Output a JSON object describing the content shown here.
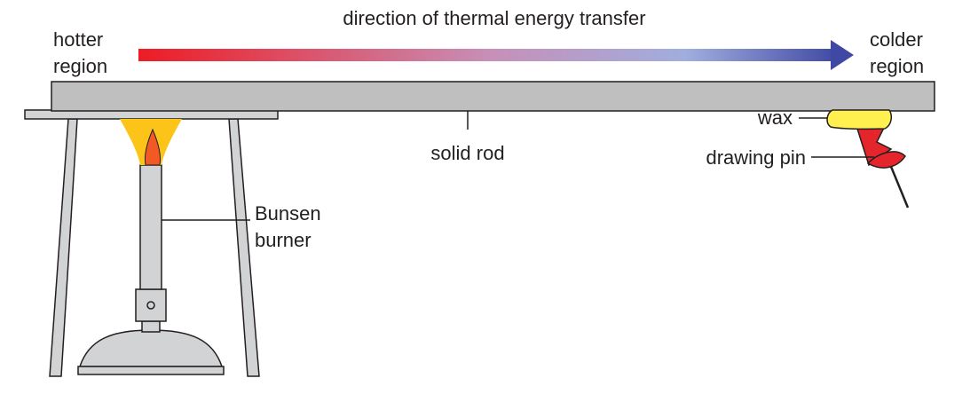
{
  "labels": {
    "direction": "direction of thermal energy transfer",
    "hotter_line1": "hotter",
    "hotter_line2": "region",
    "colder_line1": "colder",
    "colder_line2": "region",
    "solid_rod": "solid rod",
    "wax": "wax",
    "drawing_pin": "drawing pin",
    "bunsen_line1": "Bunsen",
    "bunsen_line2": "burner"
  },
  "colors": {
    "arrow_start": "#ed1c24",
    "arrow_mid": "#c78fb7",
    "arrow_light": "#a0aede",
    "arrow_end": "#3f48a3",
    "rod": "#bfbfbf",
    "wax": "#fff04f",
    "pin": "#e4262c",
    "flame_outer": "#fcc419",
    "flame_inner": "#f15a24",
    "stand": "#d1d3d4",
    "outline": "#231f20"
  },
  "icons": [
    "bunsen-burner-icon",
    "flame-icon",
    "drawing-pin-icon",
    "wax-blob-icon",
    "tripod-stand-icon"
  ]
}
